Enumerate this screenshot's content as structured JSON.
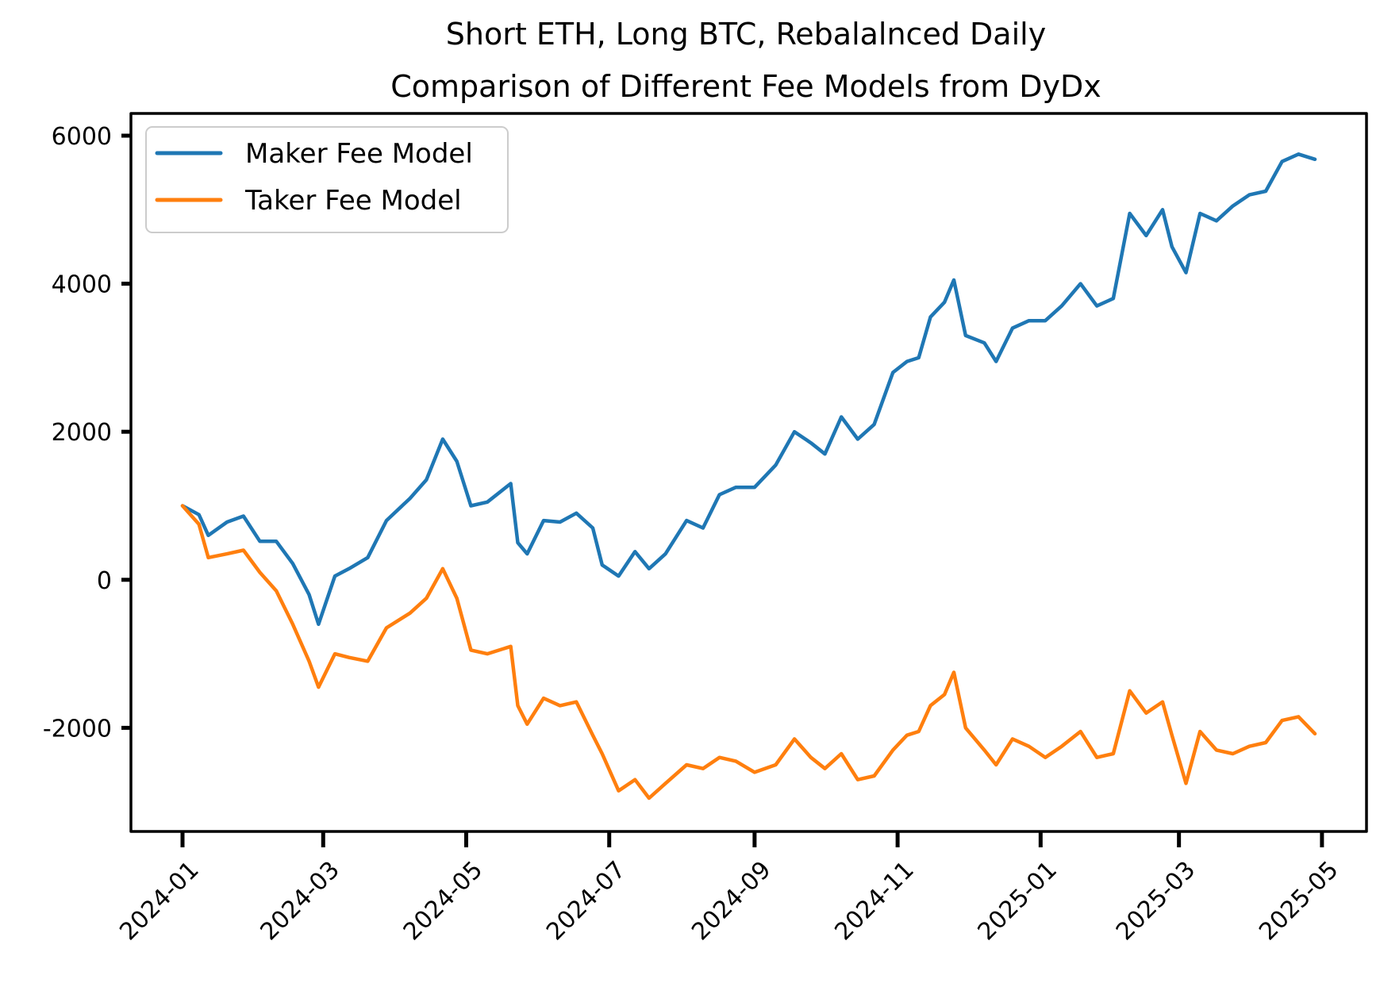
{
  "chart_data": {
    "type": "line",
    "title_lines": [
      "Short ETH, Long BTC, Rebalalnced Daily",
      "Comparison of Different Fee Models from DyDx"
    ],
    "xlabel": "",
    "ylabel": "",
    "ylim": [
      -3400,
      6300
    ],
    "xlim": [
      "2023-12-10",
      "2025-05-20"
    ],
    "y_ticks": [
      {
        "value": 6000,
        "label": "6000"
      },
      {
        "value": 4000,
        "label": "4000"
      },
      {
        "value": 2000,
        "label": "2000"
      },
      {
        "value": 0,
        "label": "0"
      },
      {
        "value": -2000,
        "label": "-2000"
      }
    ],
    "x_ticks": [
      {
        "date": "2024-01-01",
        "label": "2024-01"
      },
      {
        "date": "2024-03-01",
        "label": "2024-03"
      },
      {
        "date": "2024-05-01",
        "label": "2024-05"
      },
      {
        "date": "2024-07-01",
        "label": "2024-07"
      },
      {
        "date": "2024-09-01",
        "label": "2024-09"
      },
      {
        "date": "2024-11-01",
        "label": "2024-11"
      },
      {
        "date": "2025-01-01",
        "label": "2025-01"
      },
      {
        "date": "2025-03-01",
        "label": "2025-03"
      },
      {
        "date": "2025-05-01",
        "label": "2025-05"
      }
    ],
    "legend_position": "top-left",
    "series": [
      {
        "name": "Maker Fee Model",
        "color": "#1f77b4",
        "points": [
          [
            "2024-01-01",
            1000
          ],
          [
            "2024-01-08",
            880
          ],
          [
            "2024-01-12",
            600
          ],
          [
            "2024-01-20",
            780
          ],
          [
            "2024-01-27",
            860
          ],
          [
            "2024-02-03",
            520
          ],
          [
            "2024-02-10",
            520
          ],
          [
            "2024-02-17",
            220
          ],
          [
            "2024-02-24",
            -200
          ],
          [
            "2024-02-28",
            -600
          ],
          [
            "2024-03-06",
            50
          ],
          [
            "2024-03-12",
            150
          ],
          [
            "2024-03-20",
            300
          ],
          [
            "2024-03-28",
            800
          ],
          [
            "2024-04-07",
            1100
          ],
          [
            "2024-04-14",
            1350
          ],
          [
            "2024-04-21",
            1900
          ],
          [
            "2024-04-27",
            1600
          ],
          [
            "2024-05-03",
            1000
          ],
          [
            "2024-05-10",
            1050
          ],
          [
            "2024-05-20",
            1300
          ],
          [
            "2024-05-23",
            500
          ],
          [
            "2024-05-27",
            350
          ],
          [
            "2024-06-03",
            800
          ],
          [
            "2024-06-10",
            780
          ],
          [
            "2024-06-17",
            900
          ],
          [
            "2024-06-24",
            700
          ],
          [
            "2024-06-28",
            200
          ],
          [
            "2024-07-05",
            50
          ],
          [
            "2024-07-12",
            380
          ],
          [
            "2024-07-18",
            150
          ],
          [
            "2024-07-25",
            350
          ],
          [
            "2024-08-03",
            800
          ],
          [
            "2024-08-10",
            700
          ],
          [
            "2024-08-17",
            1150
          ],
          [
            "2024-08-24",
            1250
          ],
          [
            "2024-09-01",
            1250
          ],
          [
            "2024-09-10",
            1550
          ],
          [
            "2024-09-18",
            2000
          ],
          [
            "2024-09-25",
            1850
          ],
          [
            "2024-10-01",
            1700
          ],
          [
            "2024-10-08",
            2200
          ],
          [
            "2024-10-15",
            1900
          ],
          [
            "2024-10-22",
            2100
          ],
          [
            "2024-10-30",
            2800
          ],
          [
            "2024-11-05",
            2950
          ],
          [
            "2024-11-10",
            3000
          ],
          [
            "2024-11-15",
            3550
          ],
          [
            "2024-11-21",
            3750
          ],
          [
            "2024-11-25",
            4050
          ],
          [
            "2024-11-30",
            3300
          ],
          [
            "2024-12-08",
            3200
          ],
          [
            "2024-12-13",
            2950
          ],
          [
            "2024-12-20",
            3400
          ],
          [
            "2024-12-27",
            3500
          ],
          [
            "2025-01-03",
            3500
          ],
          [
            "2025-01-10",
            3700
          ],
          [
            "2025-01-18",
            4000
          ],
          [
            "2025-01-25",
            3700
          ],
          [
            "2025-02-01",
            3800
          ],
          [
            "2025-02-08",
            4950
          ],
          [
            "2025-02-15",
            4650
          ],
          [
            "2025-02-22",
            5000
          ],
          [
            "2025-02-26",
            4500
          ],
          [
            "2025-03-04",
            4150
          ],
          [
            "2025-03-10",
            4950
          ],
          [
            "2025-03-17",
            4850
          ],
          [
            "2025-03-24",
            5050
          ],
          [
            "2025-03-31",
            5200
          ],
          [
            "2025-04-07",
            5250
          ],
          [
            "2025-04-14",
            5650
          ],
          [
            "2025-04-21",
            5750
          ],
          [
            "2025-04-28",
            5680
          ]
        ]
      },
      {
        "name": "Taker Fee Model",
        "color": "#ff7f0e",
        "points": [
          [
            "2024-01-01",
            1000
          ],
          [
            "2024-01-08",
            750
          ],
          [
            "2024-01-12",
            300
          ],
          [
            "2024-01-20",
            350
          ],
          [
            "2024-01-27",
            400
          ],
          [
            "2024-02-03",
            100
          ],
          [
            "2024-02-10",
            -150
          ],
          [
            "2024-02-17",
            -600
          ],
          [
            "2024-02-24",
            -1100
          ],
          [
            "2024-02-28",
            -1450
          ],
          [
            "2024-03-06",
            -1000
          ],
          [
            "2024-03-12",
            -1050
          ],
          [
            "2024-03-20",
            -1100
          ],
          [
            "2024-03-28",
            -650
          ],
          [
            "2024-04-07",
            -450
          ],
          [
            "2024-04-14",
            -250
          ],
          [
            "2024-04-21",
            150
          ],
          [
            "2024-04-27",
            -250
          ],
          [
            "2024-05-03",
            -950
          ],
          [
            "2024-05-10",
            -1000
          ],
          [
            "2024-05-20",
            -900
          ],
          [
            "2024-05-23",
            -1700
          ],
          [
            "2024-05-27",
            -1950
          ],
          [
            "2024-06-03",
            -1600
          ],
          [
            "2024-06-10",
            -1700
          ],
          [
            "2024-06-17",
            -1650
          ],
          [
            "2024-06-24",
            -2100
          ],
          [
            "2024-06-28",
            -2350
          ],
          [
            "2024-07-05",
            -2850
          ],
          [
            "2024-07-12",
            -2700
          ],
          [
            "2024-07-18",
            -2950
          ],
          [
            "2024-07-25",
            -2750
          ],
          [
            "2024-08-03",
            -2500
          ],
          [
            "2024-08-10",
            -2550
          ],
          [
            "2024-08-17",
            -2400
          ],
          [
            "2024-08-24",
            -2450
          ],
          [
            "2024-09-01",
            -2600
          ],
          [
            "2024-09-10",
            -2500
          ],
          [
            "2024-09-18",
            -2150
          ],
          [
            "2024-09-25",
            -2400
          ],
          [
            "2024-10-01",
            -2550
          ],
          [
            "2024-10-08",
            -2350
          ],
          [
            "2024-10-15",
            -2700
          ],
          [
            "2024-10-22",
            -2650
          ],
          [
            "2024-10-30",
            -2300
          ],
          [
            "2024-11-05",
            -2100
          ],
          [
            "2024-11-10",
            -2050
          ],
          [
            "2024-11-15",
            -1700
          ],
          [
            "2024-11-21",
            -1550
          ],
          [
            "2024-11-25",
            -1250
          ],
          [
            "2024-11-30",
            -2000
          ],
          [
            "2024-12-08",
            -2300
          ],
          [
            "2024-12-13",
            -2500
          ],
          [
            "2024-12-20",
            -2150
          ],
          [
            "2024-12-27",
            -2250
          ],
          [
            "2025-01-03",
            -2400
          ],
          [
            "2025-01-10",
            -2250
          ],
          [
            "2025-01-18",
            -2050
          ],
          [
            "2025-01-25",
            -2400
          ],
          [
            "2025-02-01",
            -2350
          ],
          [
            "2025-02-08",
            -1500
          ],
          [
            "2025-02-15",
            -1800
          ],
          [
            "2025-02-22",
            -1650
          ],
          [
            "2025-02-26",
            -2100
          ],
          [
            "2025-03-04",
            -2750
          ],
          [
            "2025-03-10",
            -2050
          ],
          [
            "2025-03-17",
            -2300
          ],
          [
            "2025-03-24",
            -2350
          ],
          [
            "2025-03-31",
            -2250
          ],
          [
            "2025-04-07",
            -2200
          ],
          [
            "2025-04-14",
            -1900
          ],
          [
            "2025-04-21",
            -1850
          ],
          [
            "2025-04-28",
            -2080
          ]
        ]
      }
    ]
  }
}
